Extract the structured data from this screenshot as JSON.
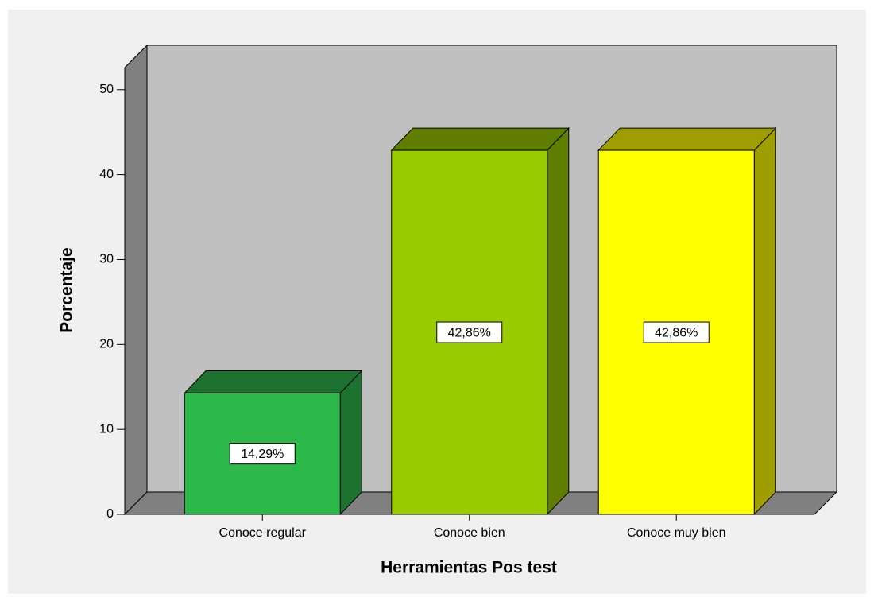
{
  "chart_data": {
    "type": "bar3d",
    "x_label": "Herramientas Pos test",
    "y_label": "Porcentaje",
    "categories": [
      "Conoce regular",
      "Conoce bien",
      "Conoce muy bien"
    ],
    "values": [
      14.29,
      42.86,
      42.86
    ],
    "value_labels": [
      "14,29%",
      "42,86%",
      "42,86%"
    ],
    "colors": [
      "#2db84a",
      "#99cc00",
      "#ffff00"
    ],
    "ylim": [
      0,
      52.6
    ],
    "yticks": [
      0,
      10,
      20,
      30,
      40,
      50
    ]
  }
}
